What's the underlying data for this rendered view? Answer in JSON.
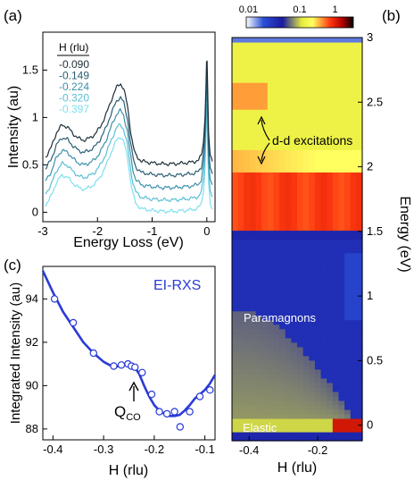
{
  "panel_labels": {
    "a": "(a)",
    "b": "(b)",
    "c": "(c)"
  },
  "chart_data": [
    {
      "panel": "(a)",
      "type": "line",
      "xlabel": "Energy Loss (eV)",
      "ylabel": "Intensity (au)",
      "xlim": [
        -3,
        0.15
      ],
      "ylim": [
        -0.1,
        1.9
      ],
      "xticks": [
        "-3",
        "-2",
        "-1",
        "0"
      ],
      "xtick_values": [
        -3,
        -2,
        -1,
        0
      ],
      "yticks": [
        "0",
        "0.5",
        "1",
        "1.5"
      ],
      "ytick_values": [
        0,
        0.5,
        1,
        1.5
      ],
      "legend_title": "H (rlu)",
      "series": [
        {
          "name": "-0.090",
          "color": "#1c2e38",
          "offset": 0.5,
          "scale": 1.0
        },
        {
          "name": "-0.149",
          "color": "#2a5d73",
          "offset": 0.38,
          "scale": 0.97
        },
        {
          "name": "-0.224",
          "color": "#3d8fab",
          "offset": 0.25,
          "scale": 0.96
        },
        {
          "name": "-0.320",
          "color": "#5abfd6",
          "offset": 0.12,
          "scale": 0.94
        },
        {
          "name": "-0.397",
          "color": "#7ee0ee",
          "offset": 0.0,
          "scale": 0.93
        }
      ],
      "base_profile": {
        "x": [
          -2.95,
          -2.85,
          -2.75,
          -2.65,
          -2.55,
          -2.45,
          -2.35,
          -2.25,
          -2.15,
          -2.05,
          -1.95,
          -1.85,
          -1.75,
          -1.65,
          -1.58,
          -1.52,
          -1.45,
          -1.4,
          -1.35,
          -1.3,
          -1.2,
          -1.0,
          -0.8,
          -0.6,
          -0.4,
          -0.25,
          -0.15,
          -0.1,
          -0.06,
          -0.03,
          -0.01,
          0.0,
          0.01,
          0.03,
          0.06,
          0.1
        ],
        "y": [
          0.08,
          0.18,
          0.34,
          0.42,
          0.4,
          0.33,
          0.28,
          0.26,
          0.28,
          0.32,
          0.4,
          0.52,
          0.68,
          0.82,
          0.86,
          0.8,
          0.62,
          0.38,
          0.2,
          0.1,
          0.04,
          0.02,
          0.01,
          0.01,
          0.02,
          0.03,
          0.05,
          0.1,
          0.25,
          0.55,
          0.95,
          1.22,
          0.95,
          0.35,
          0.1,
          0.04
        ]
      }
    },
    {
      "panel": "(b)",
      "type": "heatmap",
      "xlabel": "H (rlu)",
      "ylabel": "Energy (eV)",
      "xlim": [
        -0.45,
        -0.07
      ],
      "ylim": [
        -0.12,
        3.0
      ],
      "xticks": [
        "-0.4",
        "-0.2"
      ],
      "xtick_values": [
        -0.4,
        -0.2
      ],
      "yticks": [
        "0",
        "0.5",
        "1",
        "1.5",
        "2",
        "2.5",
        "3"
      ],
      "ytick_values": [
        0,
        0.5,
        1,
        1.5,
        2,
        2.5,
        3
      ],
      "colorbar": {
        "ticks": [
          "0.01",
          "0.1",
          "1"
        ],
        "scale": "log",
        "colors": [
          "#ffffff",
          "#2a4fd6",
          "#1a1aa0",
          "#e6ed3c",
          "#ffff60",
          "#ff3a10",
          "#b00000",
          "#000000"
        ]
      },
      "annotations": [
        "d-d excitations",
        "Paramagnons",
        "Elastic"
      ]
    },
    {
      "panel": "(c)",
      "type": "scatter",
      "title": "EI-RXS",
      "xlabel": "H (rlu)",
      "ylabel": "Integrated Intensity (au)",
      "xlim": [
        -0.42,
        -0.08
      ],
      "ylim": [
        87.5,
        95.5
      ],
      "xticks": [
        "-0.4",
        "-0.3",
        "-0.2",
        "-0.1"
      ],
      "xtick_values": [
        -0.4,
        -0.3,
        -0.2,
        -0.1
      ],
      "yticks": [
        "88",
        "90",
        "92",
        "94"
      ],
      "ytick_values": [
        88,
        90,
        92,
        94
      ],
      "annotation": {
        "text": "Q",
        "subscript": "CO"
      },
      "points": {
        "x": [
          -0.397,
          -0.36,
          -0.32,
          -0.28,
          -0.265,
          -0.252,
          -0.245,
          -0.238,
          -0.224,
          -0.205,
          -0.19,
          -0.175,
          -0.16,
          -0.149,
          -0.13,
          -0.11,
          -0.09
        ],
        "y": [
          94.0,
          92.9,
          91.5,
          90.9,
          90.95,
          91.0,
          90.9,
          90.85,
          90.6,
          89.6,
          88.8,
          88.7,
          88.8,
          88.1,
          88.8,
          89.5,
          89.8
        ]
      },
      "fit": {
        "x": [
          -0.42,
          -0.4,
          -0.38,
          -0.36,
          -0.34,
          -0.32,
          -0.3,
          -0.28,
          -0.26,
          -0.25,
          -0.24,
          -0.23,
          -0.22,
          -0.21,
          -0.2,
          -0.19,
          -0.18,
          -0.17,
          -0.16,
          -0.15,
          -0.14,
          -0.13,
          -0.12,
          -0.11,
          -0.1,
          -0.09,
          -0.08
        ],
        "y": [
          95.3,
          94.3,
          93.4,
          92.7,
          92.0,
          91.5,
          91.1,
          90.85,
          90.95,
          91.0,
          90.9,
          90.55,
          90.0,
          89.5,
          89.1,
          88.85,
          88.7,
          88.6,
          88.6,
          88.65,
          88.85,
          89.1,
          89.4,
          89.6,
          89.8,
          90.1,
          90.5
        ]
      },
      "color": "#2a3bd6"
    }
  ]
}
